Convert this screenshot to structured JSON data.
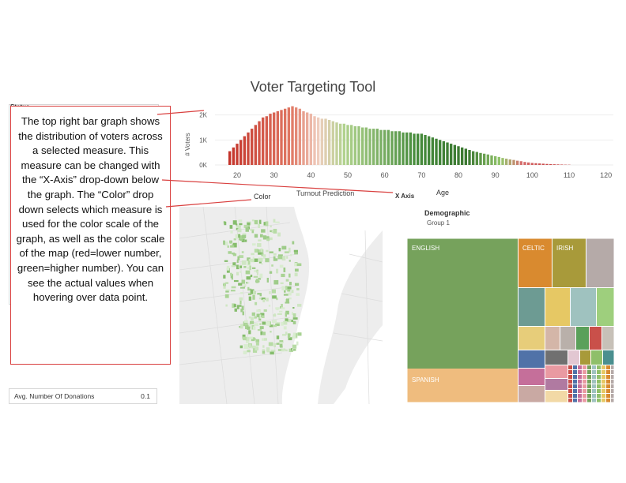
{
  "page": {
    "title": "Voter Targeting Tool"
  },
  "left_panel": {
    "status_label": "Status"
  },
  "callout": {
    "text": "The top right bar graph shows the distribution of voters across a selected measure. This measure can be changed with the “X-Axis” drop-down below the graph. The “Color” drop down selects which measure is used for the color scale of the graph, as well as the color scale of the map (red=lower number, green=higher number). You can see the actual values when hovering over data point."
  },
  "controls": {
    "color_label": "Color",
    "turnout_label": "Turnout Prediction",
    "xaxis_label": "X Axis",
    "axis_name": "Age"
  },
  "demographic": {
    "title": "Demographic",
    "group": "Group 1",
    "labels": [
      "ENGLISH",
      "CELTIC",
      "IRISH",
      "SPANISH"
    ]
  },
  "filter": {
    "label": "Avg. Number Of Donations",
    "value": "0.1"
  },
  "colors": {
    "red": "#c0392b",
    "green": "#3f7a35",
    "callout_border": "#d9403f"
  },
  "chart_data": {
    "type": "bar",
    "title": "",
    "xlabel": "Age",
    "ylabel": "# Voters",
    "x_ticks": [
      20,
      30,
      40,
      50,
      60,
      70,
      80,
      90,
      100,
      110,
      120
    ],
    "y_ticks": [
      "0K",
      "1K",
      "2K"
    ],
    "ylim": [
      0,
      2400
    ],
    "x": [
      18,
      19,
      20,
      21,
      22,
      23,
      24,
      25,
      26,
      27,
      28,
      29,
      30,
      31,
      32,
      33,
      34,
      35,
      36,
      37,
      38,
      39,
      40,
      41,
      42,
      43,
      44,
      45,
      46,
      47,
      48,
      49,
      50,
      51,
      52,
      53,
      54,
      55,
      56,
      57,
      58,
      59,
      60,
      61,
      62,
      63,
      64,
      65,
      66,
      67,
      68,
      69,
      70,
      71,
      72,
      73,
      74,
      75,
      76,
      77,
      78,
      79,
      80,
      81,
      82,
      83,
      84,
      85,
      86,
      87,
      88,
      89,
      90,
      91,
      92,
      93,
      94,
      95,
      96,
      97,
      98,
      99,
      100,
      101,
      102,
      103,
      104,
      105,
      106,
      107,
      108,
      109,
      110
    ],
    "values": [
      550,
      700,
      850,
      1000,
      1150,
      1300,
      1450,
      1600,
      1750,
      1900,
      1950,
      2050,
      2100,
      2150,
      2200,
      2250,
      2300,
      2350,
      2300,
      2250,
      2150,
      2100,
      2050,
      1950,
      1900,
      1850,
      1850,
      1800,
      1750,
      1700,
      1650,
      1650,
      1600,
      1600,
      1550,
      1550,
      1500,
      1500,
      1450,
      1450,
      1450,
      1400,
      1400,
      1400,
      1350,
      1350,
      1350,
      1300,
      1300,
      1300,
      1250,
      1250,
      1250,
      1200,
      1150,
      1100,
      1050,
      1000,
      950,
      900,
      850,
      800,
      750,
      700,
      650,
      600,
      550,
      520,
      480,
      450,
      420,
      380,
      350,
      320,
      280,
      250,
      220,
      200,
      170,
      150,
      120,
      100,
      80,
      70,
      60,
      50,
      40,
      30,
      25,
      20,
      15,
      10,
      8
    ]
  }
}
